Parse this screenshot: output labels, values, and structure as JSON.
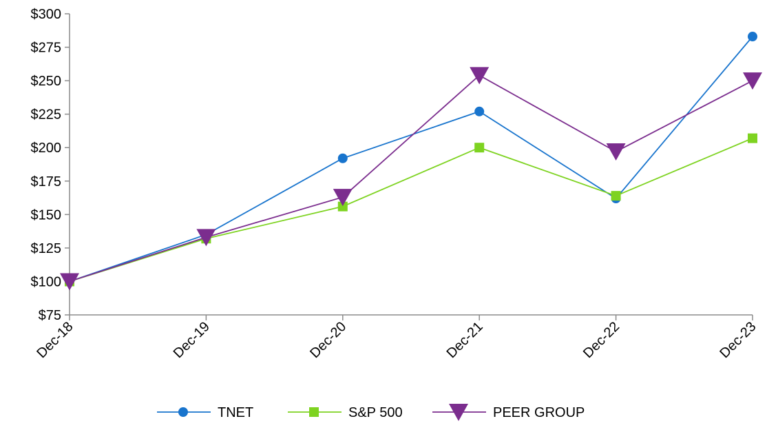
{
  "chart_data": {
    "type": "line",
    "title": "",
    "xlabel": "",
    "ylabel": "",
    "categories": [
      "Dec-18",
      "Dec-19",
      "Dec-20",
      "Dec-21",
      "Dec-22",
      "Dec-23"
    ],
    "ylim": [
      75,
      300
    ],
    "yticks": [
      75,
      100,
      125,
      150,
      175,
      200,
      225,
      250,
      275,
      300
    ],
    "ytick_labels": [
      "$75",
      "$100",
      "$125",
      "$150",
      "$175",
      "$200",
      "$225",
      "$250",
      "$275",
      "$300"
    ],
    "grid": false,
    "legend_position": "bottom-center",
    "series": [
      {
        "name": "TNET",
        "marker": "circle",
        "color": "#1874CD",
        "values": [
          100,
          135,
          192,
          227,
          162,
          283
        ]
      },
      {
        "name": "S&P 500",
        "marker": "square",
        "color": "#7ED321",
        "values": [
          100,
          132,
          156,
          200,
          164,
          207
        ]
      },
      {
        "name": "PEER GROUP",
        "marker": "triangle-down",
        "color": "#7B2D8E",
        "values": [
          100,
          133,
          163,
          254,
          197,
          250
        ]
      }
    ]
  }
}
